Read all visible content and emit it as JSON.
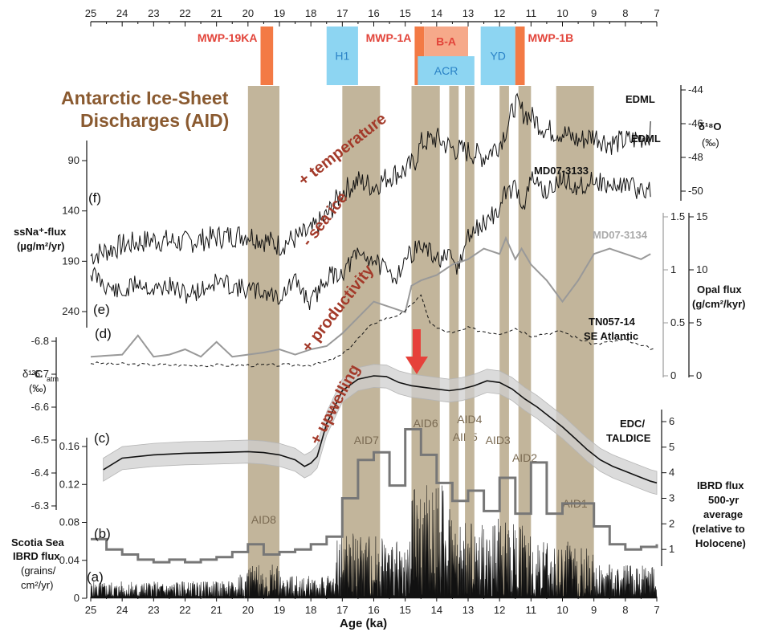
{
  "chart_data": {
    "type": "line",
    "title": "Antarctic Ice-Sheet Discharges (AID)",
    "xlabel": "Age (ka)",
    "xlim": [
      25,
      7
    ],
    "x_ticks": [
      25,
      24,
      23,
      22,
      21,
      20,
      19,
      18,
      17,
      16,
      15,
      14,
      13,
      12,
      11,
      10,
      9,
      8,
      7
    ],
    "events": [
      {
        "label": "MWP-19KA",
        "range": [
          19.6,
          19.2
        ],
        "color": "#f37a45"
      },
      {
        "label": "H1",
        "range": [
          17.5,
          16.5
        ],
        "color": "#8dd5f2"
      },
      {
        "label": "MWP-1A",
        "range": [
          14.7,
          14.4
        ],
        "color": "#f37a45"
      },
      {
        "label": "B-A",
        "range": [
          14.4,
          13.0
        ],
        "color": "#f6a98a"
      },
      {
        "label": "ACR",
        "range": [
          14.6,
          12.8
        ],
        "color": "#8dd5f2"
      },
      {
        "label": "YD",
        "range": [
          12.6,
          11.5
        ],
        "color": "#8dd5f2"
      },
      {
        "label": "MWP-1B",
        "range": [
          11.5,
          11.2
        ],
        "color": "#f37a45"
      }
    ],
    "aid_bands": [
      {
        "label": "AID8",
        "range": [
          20.0,
          19.0
        ]
      },
      {
        "label": "AID7",
        "range": [
          17.0,
          15.8
        ]
      },
      {
        "label": "AID6",
        "range": [
          14.8,
          13.9
        ]
      },
      {
        "label": "AID5",
        "range": [
          13.6,
          13.3
        ]
      },
      {
        "label": "AID4",
        "range": [
          13.1,
          12.8
        ]
      },
      {
        "label": "AID3",
        "range": [
          12.0,
          11.7
        ]
      },
      {
        "label": "AID2",
        "range": [
          11.4,
          11.0
        ]
      },
      {
        "label": "AID1",
        "range": [
          10.2,
          9.0
        ]
      }
    ],
    "annotations": [
      "+ temperature",
      "- sea ice",
      "+ productivity",
      "+ upwelling"
    ],
    "panel_letters": [
      "(a)",
      "(b)",
      "(c)",
      "(d)",
      "(e)",
      "(f)"
    ],
    "series": [
      {
        "name": "EDML",
        "axis": "δ18O (‰)",
        "ylim": [
          -51,
          -44
        ],
        "x": [
          25,
          24,
          23,
          22,
          21,
          20,
          19,
          18,
          17.5,
          17,
          16.5,
          16,
          15.5,
          15,
          14.7,
          14.5,
          14,
          13.5,
          13,
          12.5,
          12,
          11.7,
          11.5,
          11.3,
          11,
          10.5,
          10,
          9.5,
          9,
          8.5,
          8,
          7.5,
          7.2
        ],
        "values": [
          -50.2,
          -49.8,
          -49.6,
          -49.7,
          -49.5,
          -49.4,
          -49.8,
          -49.3,
          -48.7,
          -47.8,
          -47.4,
          -47.6,
          -47.2,
          -47.0,
          -46.7,
          -46.0,
          -45.8,
          -46.2,
          -46.3,
          -46.5,
          -46.0,
          -45.2,
          -44.5,
          -44.8,
          -45.0,
          -45.5,
          -45.6,
          -45.9,
          -45.7,
          -46.0,
          -45.9,
          -45.8,
          -45.6
        ]
      },
      {
        "name": "MD07-3133",
        "axis": "ssNa+-flux (µg/m²/yr)",
        "ylim": [
          255,
          70
        ],
        "x": [
          25,
          24.5,
          24,
          23.5,
          23,
          22.5,
          22,
          21.5,
          21,
          20.5,
          20,
          19.5,
          19,
          18.5,
          18,
          17.5,
          17,
          16.5,
          16,
          15.6,
          15.3,
          15,
          14.7,
          14.5,
          14,
          13.6,
          13.3,
          13,
          12.5,
          12,
          11.8,
          11.5,
          11.2,
          11,
          10.5,
          10,
          9.5,
          9,
          8.5,
          8,
          7.5,
          7.2
        ],
        "values": [
          190,
          205,
          215,
          200,
          210,
          205,
          215,
          210,
          200,
          205,
          210,
          212,
          218,
          200,
          225,
          195,
          190,
          170,
          175,
          190,
          195,
          175,
          165,
          160,
          175,
          175,
          185,
          150,
          135,
          120,
          100,
          95,
          115,
          85,
          100,
          85,
          95,
          85,
          95,
          90,
          100,
          95
        ]
      },
      {
        "name": "MD07-3134",
        "axis": "Opal flux (g/cm²/kyr)",
        "ylim": [
          0,
          1.5
        ],
        "x": [
          25,
          24,
          23.5,
          23,
          22.5,
          22,
          21.5,
          21,
          20.5,
          20,
          19.5,
          19,
          18.5,
          18,
          17.5,
          17,
          16.5,
          16,
          15.5,
          15,
          14.8,
          14.5,
          14,
          13.5,
          13,
          12.5,
          12,
          11.8,
          11.5,
          11.3,
          11,
          10.5,
          10,
          9.5,
          9,
          8.5,
          8,
          7.5,
          7.2
        ],
        "values": [
          0.18,
          0.2,
          0.38,
          0.18,
          0.2,
          0.25,
          0.18,
          0.32,
          0.18,
          0.2,
          0.22,
          0.25,
          0.2,
          0.25,
          0.28,
          0.4,
          0.55,
          0.7,
          0.65,
          0.6,
          0.85,
          0.9,
          0.95,
          1.05,
          1.1,
          1.2,
          1.15,
          1.3,
          1.1,
          1.2,
          1.05,
          0.9,
          0.7,
          0.9,
          1.15,
          1.2,
          1.15,
          1.1,
          1.15
        ]
      },
      {
        "name": "TN057-14 SE Atlantic",
        "axis": "Opal flux (g/cm²/kyr)",
        "ylim": [
          0,
          15
        ],
        "x": [
          25,
          24,
          23,
          22,
          21,
          20,
          19,
          18,
          17.5,
          17,
          16.5,
          16,
          15.5,
          15,
          14.8,
          14.5,
          14.2,
          14,
          13.5,
          13,
          12.5,
          12,
          11.5,
          11,
          10.5,
          10,
          9.5,
          9,
          8.5,
          8,
          7.5,
          7
        ],
        "values": [
          1.2,
          1.1,
          1.05,
          1.0,
          1.0,
          1.0,
          1.0,
          1.05,
          1.3,
          2.0,
          3.5,
          5.0,
          5.5,
          6.0,
          6.8,
          7.5,
          5.0,
          4.5,
          4.0,
          4.5,
          4.2,
          4.0,
          4.5,
          3.8,
          4.0,
          4.2,
          3.5,
          3.0,
          3.2,
          3.4,
          2.8,
          2.5
        ]
      },
      {
        "name": "EDC/TALDICE",
        "axis": "δ13C atm (‰)",
        "ylim": [
          -6.28,
          -6.82
        ],
        "x": [
          24.6,
          24,
          23,
          22,
          21,
          20,
          19.5,
          19,
          18.5,
          18.2,
          18,
          17.8,
          17.5,
          17,
          16.5,
          16,
          15.6,
          15.2,
          14.8,
          14.4,
          14,
          13.6,
          13.2,
          12.8,
          12.4,
          12,
          11.6,
          11.2,
          10.8,
          10.4,
          10,
          9.6,
          9.2,
          8.8,
          8.4,
          8,
          7.6,
          7.2,
          7
        ],
        "values": [
          -6.41,
          -6.445,
          -6.455,
          -6.46,
          -6.462,
          -6.465,
          -6.462,
          -6.455,
          -6.44,
          -6.42,
          -6.43,
          -6.45,
          -6.55,
          -6.65,
          -6.685,
          -6.695,
          -6.693,
          -6.675,
          -6.665,
          -6.66,
          -6.655,
          -6.65,
          -6.655,
          -6.665,
          -6.68,
          -6.675,
          -6.655,
          -6.625,
          -6.6,
          -6.57,
          -6.54,
          -6.505,
          -6.47,
          -6.44,
          -6.42,
          -6.405,
          -6.39,
          -6.375,
          -6.37
        ]
      },
      {
        "name": "Scotia Sea IBRD flux 500-yr average",
        "axis": "IBRD flux 500-yr average (relative to Holocene)",
        "ylim": [
          0,
          6.8
        ],
        "x": [
          25,
          24.5,
          24,
          23.5,
          23,
          22.5,
          22,
          21.5,
          21,
          20.5,
          20,
          19.5,
          19,
          18.5,
          18,
          17.5,
          17,
          16.5,
          16,
          15.5,
          15,
          14.5,
          14,
          13.5,
          13,
          12.5,
          12,
          11.5,
          11,
          10.5,
          10,
          9.5,
          9,
          8.5,
          8,
          7.5,
          7
        ],
        "values": [
          1.4,
          1.0,
          0.8,
          0.6,
          0.5,
          0.6,
          0.5,
          0.6,
          0.7,
          0.9,
          1.2,
          0.8,
          0.9,
          1.0,
          1.2,
          1.5,
          3.0,
          4.5,
          4.8,
          3.5,
          5.7,
          4.7,
          3.6,
          2.9,
          3.3,
          2.5,
          3.8,
          2.4,
          4.4,
          2.4,
          2.8,
          2.8,
          1.9,
          1.2,
          1.0,
          1.1,
          1.2
        ]
      },
      {
        "name": "Scotia Sea IBRD flux",
        "axis": "Scotia Sea IBRD flux (grains/cm²/yr)",
        "ylim": [
          0,
          0.17
        ]
      }
    ],
    "axes": {
      "edml_ticks": [
        "-44",
        "-46",
        "-48",
        "-50"
      ],
      "ssna_ticks": [
        "90",
        "140",
        "190",
        "240"
      ],
      "opal_ticks_inner": [
        "1.5",
        "1",
        "0.5",
        "0"
      ],
      "opal_ticks_outer": [
        "15",
        "10",
        "5",
        "0"
      ],
      "d13c_ticks": [
        "-6.8",
        "-6.7",
        "-6.6",
        "-6.5",
        "-6.4",
        "-6.3"
      ],
      "ibrd_ticks": [
        "0",
        "0.04",
        "0.08",
        "0.12",
        "0.16"
      ],
      "ibrd_avg_ticks": [
        "1",
        "2",
        "3",
        "4",
        "5",
        "6"
      ]
    },
    "labels": {
      "edml_top": "EDML",
      "edml_mid": "EDML",
      "md3133": "MD07-3133",
      "md3134": "MD07-3134",
      "tn_line1": "TN057-14",
      "tn_line2": "SE Atlantic",
      "edc_line1": "EDC/",
      "edc_line2": "TALDICE",
      "d18o_line1": "δ¹⁸O",
      "d18o_line2": "(‰)",
      "ssna_line1": "ssNa⁺-flux",
      "ssna_line2": "(µg/m²/yr)",
      "opal_line1": "Opal flux",
      "opal_line2": "(g/cm²/kyr)",
      "d13c_line1": "δ¹³C",
      "d13c_sub": "atm",
      "d13c_line2": "(‰)",
      "scotia_line1": "Scotia Sea",
      "scotia_line2": "IBRD flux",
      "scotia_line3": "(grains/",
      "scotia_line4": "cm²/yr)",
      "ibrd_line1": "IBRD flux",
      "ibrd_line2": "500-yr",
      "ibrd_line3": "average",
      "ibrd_line4": "(relative to",
      "ibrd_line5": "Holocene)",
      "title_line1": "Antarctic Ice-Sheet",
      "title_line2": "Discharges (AID)"
    }
  }
}
